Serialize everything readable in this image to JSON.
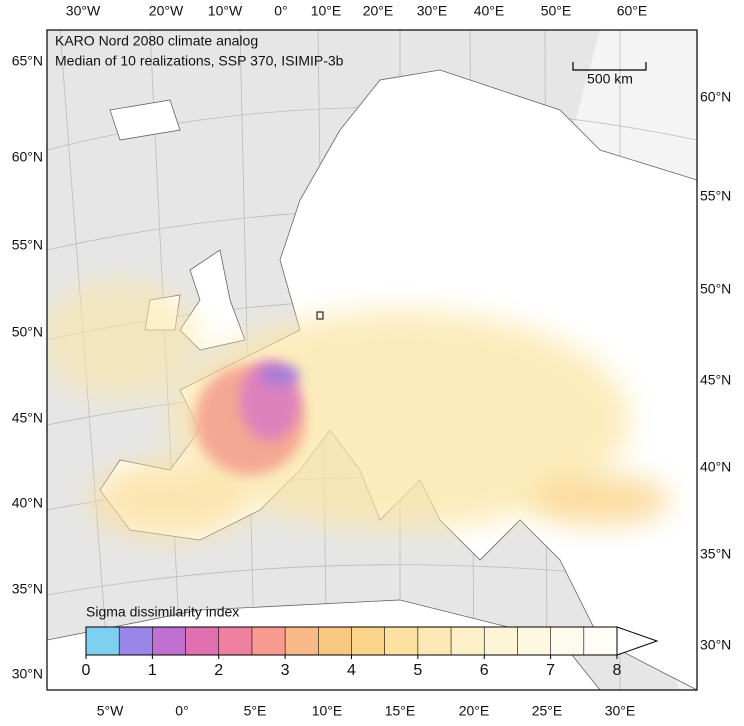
{
  "title": [
    "KARO Nord 2080 climate analog",
    "Median of 10 realizations, SSP 370, ISIMIP-3b"
  ],
  "axes": {
    "top": [
      "30°W",
      "20°W",
      "10°W",
      "0°",
      "10°E",
      "20°E",
      "30°E",
      "40°E",
      "50°E",
      "60°E"
    ],
    "bottom": [
      "5°W",
      "0°",
      "5°E",
      "10°E",
      "15°E",
      "20°E",
      "25°E",
      "30°E"
    ],
    "left": [
      "65°N",
      "60°N",
      "55°N",
      "50°N",
      "45°N",
      "40°N",
      "35°N",
      "30°N"
    ],
    "right": [
      "60°N",
      "55°N",
      "50°N",
      "45°N",
      "40°N",
      "35°N",
      "30°N"
    ]
  },
  "scale_bar": {
    "label": "500 km"
  },
  "colorbar": {
    "label": "Sigma dissimilarity index",
    "range": [
      0,
      8
    ],
    "ticks": [
      0,
      1,
      2,
      3,
      4,
      5,
      6,
      7,
      8
    ],
    "colors": [
      "#7fd0f0",
      "#9a86e8",
      "#c070d0",
      "#e070b0",
      "#f080a0",
      "#f89a90",
      "#f8b888",
      "#f9c880",
      "#fad488",
      "#fbe0a0",
      "#fce8b4",
      "#fdf0c8",
      "#fef4d6",
      "#fef8e2",
      "#fefbee",
      "#fffdf6"
    ]
  }
}
